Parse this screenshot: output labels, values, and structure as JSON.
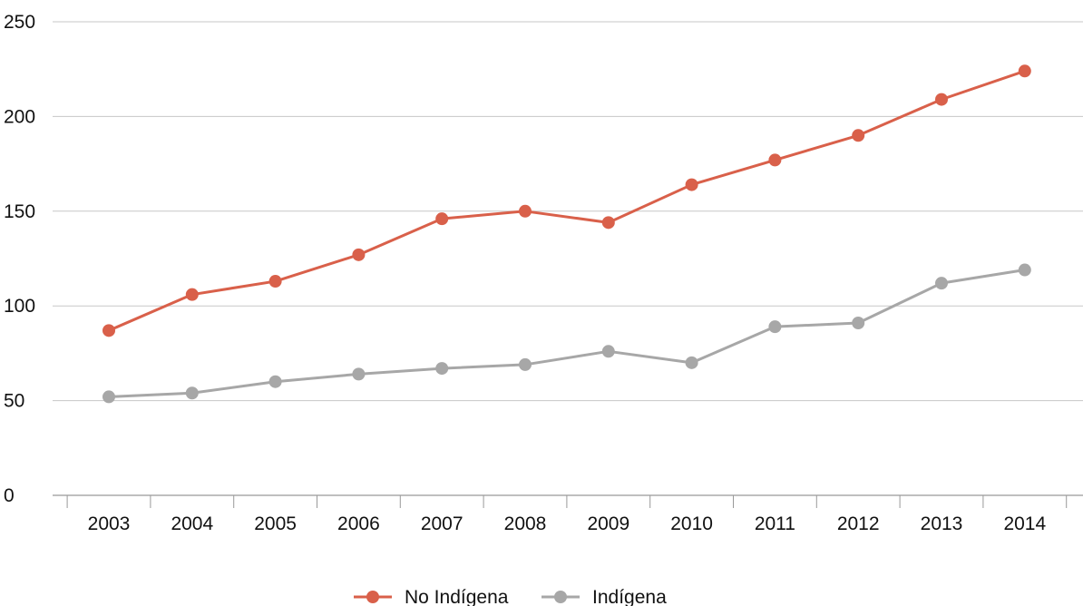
{
  "chart_data": {
    "type": "line",
    "x": [
      "2003",
      "2004",
      "2005",
      "2006",
      "2007",
      "2008",
      "2009",
      "2010",
      "2011",
      "2012",
      "2013",
      "2014"
    ],
    "series": [
      {
        "name": "No Indígena",
        "color": "#d9604a",
        "values": [
          87,
          106,
          113,
          127,
          146,
          150,
          144,
          164,
          177,
          190,
          209,
          224
        ]
      },
      {
        "name": "Indígena",
        "color": "#a7a7a7",
        "values": [
          52,
          54,
          60,
          64,
          67,
          69,
          76,
          70,
          89,
          91,
          112,
          119
        ]
      }
    ],
    "yticks": [
      "0",
      "50",
      "100",
      "150",
      "200",
      "250"
    ],
    "ylim": [
      0,
      250
    ],
    "grid": true,
    "legend_position": "bottom-center",
    "gridline_color": "#c7c7c7",
    "axis_color": "#999999"
  }
}
